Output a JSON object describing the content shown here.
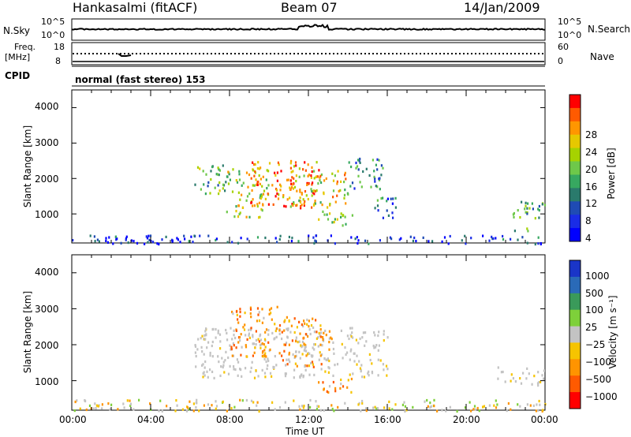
{
  "header": {
    "station": "Hankasalmi (fitACF)",
    "beam": "Beam 07",
    "date": "14/Jan/2009"
  },
  "noise_panel": {
    "left_label": "N.Sky",
    "right_label": "N.Search",
    "left_ticks": [
      "10^5",
      "10^0"
    ],
    "right_ticks": [
      "10^5",
      "10^0"
    ]
  },
  "freq_panel": {
    "left_label_1": "Freq.",
    "left_label_2": "[MHz]",
    "right_label": "Nave",
    "left_ticks": [
      "18",
      "8"
    ],
    "right_ticks": [
      "60",
      "0"
    ]
  },
  "cpid_panel": {
    "label": "CPID",
    "text": "normal (fast stereo) 153"
  },
  "chart_data": [
    {
      "type": "heatmap",
      "quantity": "power",
      "ylabel": "Slant Range [km]",
      "yticks": [
        1000,
        2000,
        3000,
        4000
      ],
      "ylim": [
        180,
        4500
      ],
      "xlim": [
        0,
        24
      ],
      "colorbar": {
        "label": "Power [dB]",
        "ticks": [
          "28",
          "24",
          "20",
          "16",
          "12",
          "8",
          "4"
        ],
        "colors": [
          "#ff0000",
          "#ff5a00",
          "#ff9600",
          "#e6c800",
          "#a6d200",
          "#6ec84a",
          "#37a860",
          "#2a7a6c",
          "#1f4bb4",
          "#1a2ce6",
          "#0000ff"
        ]
      },
      "regions": [
        {
          "t0": 6.2,
          "t1": 8.0,
          "r0": 1600,
          "r1": 2400,
          "intensity": 0.45
        },
        {
          "t0": 7.8,
          "t1": 10.0,
          "r0": 900,
          "r1": 2300,
          "intensity": 0.6
        },
        {
          "t0": 9.0,
          "t1": 12.5,
          "r0": 1200,
          "r1": 2600,
          "intensity": 0.85
        },
        {
          "t0": 11.0,
          "t1": 14.0,
          "r0": 1200,
          "r1": 2300,
          "intensity": 0.65
        },
        {
          "t0": 12.3,
          "t1": 14.3,
          "r0": 700,
          "r1": 1100,
          "intensity": 0.6
        },
        {
          "t0": 13.8,
          "t1": 15.8,
          "r0": 1700,
          "r1": 2600,
          "intensity": 0.3
        },
        {
          "t0": 15.3,
          "t1": 16.6,
          "r0": 900,
          "r1": 1500,
          "intensity": 0.25
        },
        {
          "t0": 22.0,
          "t1": 24.0,
          "r0": 900,
          "r1": 1400,
          "intensity": 0.4
        },
        {
          "t0": 21.3,
          "t1": 23.5,
          "r0": 550,
          "r1": 700,
          "intensity": 0.45
        },
        {
          "t0": 0,
          "t1": 24,
          "r0": 180,
          "r1": 420,
          "intensity": 0.15
        }
      ]
    },
    {
      "type": "heatmap",
      "quantity": "velocity",
      "ylabel": "Slant Range [km]",
      "yticks": [
        1000,
        2000,
        3000,
        4000
      ],
      "ylim": [
        180,
        4500
      ],
      "xlim": [
        0,
        24
      ],
      "xticks": [
        "00:00",
        "04:00",
        "08:00",
        "12:00",
        "16:00",
        "20:00",
        "00:00"
      ],
      "xlabel": "Time UT",
      "colorbar": {
        "label": "Velocity [m s⁻¹]",
        "ticks": [
          "1000",
          "500",
          "100",
          "25",
          "−25",
          "−100",
          "−500",
          "−1000"
        ],
        "colors": [
          "#1a35c8",
          "#2a6ab8",
          "#3a9a5a",
          "#7ed03a",
          "#c3c3c3",
          "#f6c400",
          "#ff9400",
          "#ff5a00",
          "#ff0000"
        ]
      },
      "regions": [
        {
          "t0": 6.2,
          "t1": 16.0,
          "r0": 1100,
          "r1": 2500,
          "class": "gray"
        },
        {
          "t0": 8.0,
          "t1": 10.5,
          "r0": 1700,
          "r1": 3100,
          "class": "orange"
        },
        {
          "t0": 10.5,
          "t1": 13.2,
          "r0": 1400,
          "r1": 2800,
          "class": "orange"
        },
        {
          "t0": 12.4,
          "t1": 14.2,
          "r0": 700,
          "r1": 1100,
          "class": "orange"
        },
        {
          "t0": 21.5,
          "t1": 24.0,
          "r0": 900,
          "r1": 1400,
          "class": "gray"
        },
        {
          "t0": 0,
          "t1": 24,
          "r0": 180,
          "r1": 500,
          "class": "ground"
        }
      ]
    }
  ]
}
